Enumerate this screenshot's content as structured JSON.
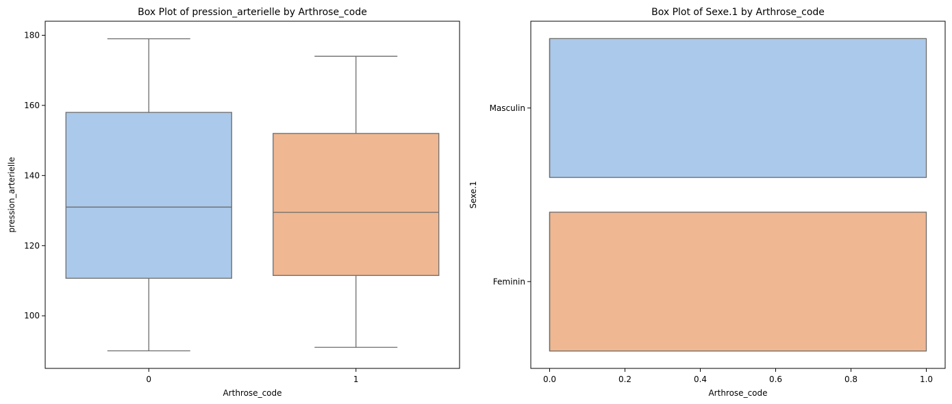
{
  "chart_data": [
    {
      "type": "boxplot",
      "title": "Box Plot of pression_arterielle by Arthrose_code",
      "xlabel": "Arthrose_code",
      "ylabel": "pression_arterielle",
      "orientation": "vertical",
      "categories": [
        "0",
        "1"
      ],
      "ylim": [
        85,
        184
      ],
      "yticks": [
        100,
        120,
        140,
        160,
        180
      ],
      "boxes": [
        {
          "category": "0",
          "whisker_low": 90,
          "q1": 110.7,
          "median": 131,
          "q3": 158,
          "whisker_high": 179,
          "color": "#abc9ea"
        },
        {
          "category": "1",
          "whisker_low": 91,
          "q1": 111.5,
          "median": 129.5,
          "q3": 152,
          "whisker_high": 174,
          "color": "#efb792"
        }
      ]
    },
    {
      "type": "boxplot",
      "title": "Box Plot of Sexe.1 by Arthrose_code",
      "xlabel": "Arthrose_code",
      "ylabel": "Sexe.1",
      "orientation": "horizontal",
      "categories": [
        "Masculin",
        "Feminin"
      ],
      "xlim": [
        -0.05,
        1.05
      ],
      "xticks": [
        "0.0",
        "0.2",
        "0.4",
        "0.6",
        "0.8",
        "1.0"
      ],
      "boxes": [
        {
          "category": "Masculin",
          "whisker_low": 0,
          "q1": 0,
          "median": 0,
          "q3": 1,
          "whisker_high": 1,
          "color": "#abc9ea"
        },
        {
          "category": "Feminin",
          "whisker_low": 0,
          "q1": 0,
          "median": 0,
          "q3": 1,
          "whisker_high": 1,
          "color": "#efb792"
        }
      ]
    }
  ]
}
